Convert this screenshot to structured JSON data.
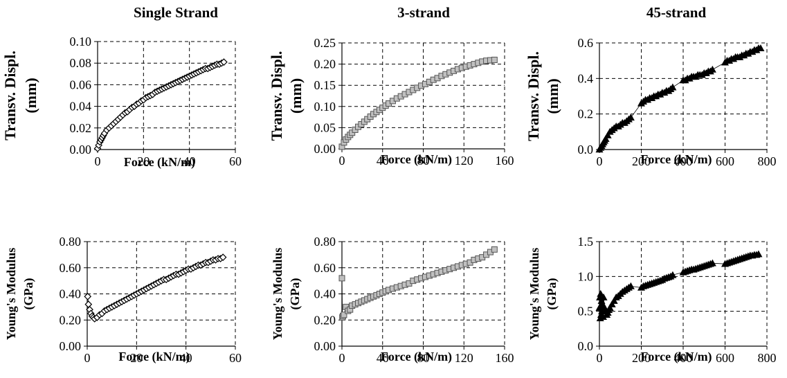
{
  "column_titles": [
    "Single Strand",
    "3-strand",
    "45-strand"
  ],
  "chart_data": [
    {
      "type": "scatter",
      "title": "Single Strand",
      "xlabel": "Force (kN/m)",
      "ylabel": [
        "Transv. Displ.",
        "(mm)"
      ],
      "xlim": [
        0,
        60
      ],
      "ylim": [
        0,
        0.1
      ],
      "xticks": [
        0,
        20,
        40,
        60
      ],
      "yticks": [
        0.0,
        0.02,
        0.04,
        0.06,
        0.08,
        0.1
      ],
      "ytick_labels": [
        "0.00",
        "0.02",
        "0.04",
        "0.06",
        "0.08",
        "0.10"
      ],
      "grid": true,
      "marker": "diamond-open",
      "color": "#000000",
      "fill": "#ffffff",
      "series": [
        {
          "x": [
            0,
            0.5,
            1,
            1.5,
            2,
            2.5,
            3,
            4,
            5,
            6,
            7,
            8,
            9,
            10,
            11,
            12,
            13,
            14,
            15,
            16,
            17,
            18,
            19,
            20,
            21,
            22,
            23,
            24,
            25,
            26,
            27,
            28,
            29,
            30,
            31,
            32,
            33,
            34,
            35,
            36,
            37,
            38,
            39,
            40,
            41,
            42,
            43,
            44,
            45,
            46,
            47,
            48,
            49,
            50,
            51,
            52,
            53,
            54,
            55
          ],
          "y": [
            0.001,
            0.004,
            0.007,
            0.009,
            0.011,
            0.013,
            0.015,
            0.018,
            0.02,
            0.022,
            0.024,
            0.026,
            0.028,
            0.03,
            0.032,
            0.034,
            0.035,
            0.037,
            0.039,
            0.04,
            0.042,
            0.043,
            0.045,
            0.046,
            0.048,
            0.049,
            0.05,
            0.051,
            0.053,
            0.054,
            0.055,
            0.056,
            0.057,
            0.058,
            0.059,
            0.06,
            0.061,
            0.062,
            0.063,
            0.064,
            0.065,
            0.066,
            0.067,
            0.068,
            0.069,
            0.07,
            0.071,
            0.072,
            0.073,
            0.074,
            0.075,
            0.075,
            0.076,
            0.077,
            0.078,
            0.079,
            0.079,
            0.08,
            0.081
          ]
        }
      ]
    },
    {
      "type": "scatter",
      "title": "3-strand",
      "xlabel": "Force (kN/m)",
      "ylabel": [
        "Transv. Displ.",
        "(mm)"
      ],
      "xlim": [
        0,
        160
      ],
      "ylim": [
        0,
        0.25
      ],
      "xticks": [
        0,
        40,
        80,
        120,
        160
      ],
      "yticks": [
        0.0,
        0.05,
        0.1,
        0.15,
        0.2,
        0.25
      ],
      "ytick_labels": [
        "0.00",
        "0.05",
        "0.10",
        "0.15",
        "0.20",
        "0.25"
      ],
      "grid": true,
      "marker": "square",
      "color": "#555555",
      "fill": "#c0c0c0",
      "series": [
        {
          "x": [
            0,
            2,
            4,
            6,
            8,
            10,
            13,
            16,
            19,
            22,
            25,
            28,
            31,
            34,
            37,
            40,
            43,
            46,
            50,
            54,
            58,
            62,
            66,
            70,
            74,
            78,
            82,
            86,
            90,
            94,
            98,
            102,
            106,
            110,
            114,
            118,
            122,
            126,
            130,
            134,
            138,
            142,
            146,
            150
          ],
          "y": [
            0.005,
            0.015,
            0.022,
            0.028,
            0.033,
            0.038,
            0.045,
            0.052,
            0.058,
            0.064,
            0.07,
            0.076,
            0.082,
            0.087,
            0.092,
            0.097,
            0.102,
            0.107,
            0.113,
            0.119,
            0.124,
            0.129,
            0.134,
            0.139,
            0.144,
            0.149,
            0.153,
            0.158,
            0.163,
            0.167,
            0.172,
            0.176,
            0.18,
            0.184,
            0.188,
            0.191,
            0.194,
            0.197,
            0.2,
            0.203,
            0.206,
            0.208,
            0.209,
            0.21
          ]
        }
      ]
    },
    {
      "type": "scatter",
      "title": "45-strand",
      "xlabel": "Force (kN/m)",
      "ylabel": [
        "Transv. Displ.",
        "(mm)"
      ],
      "xlim": [
        0,
        800
      ],
      "ylim": [
        0,
        0.6
      ],
      "xticks": [
        0,
        200,
        400,
        600,
        800
      ],
      "yticks": [
        0.0,
        0.2,
        0.4,
        0.6
      ],
      "ytick_labels": [
        "0.0",
        "0.2",
        "0.4",
        "0.6"
      ],
      "grid": true,
      "marker": "triangle",
      "color": "#000000",
      "fill": "#000000",
      "series": [
        {
          "x": [
            0,
            5,
            10,
            15,
            20,
            25,
            30,
            40,
            50,
            60,
            70,
            80,
            90,
            100,
            110,
            120,
            130,
            140,
            150,
            200,
            210,
            220,
            230,
            240,
            250,
            260,
            270,
            280,
            290,
            300,
            310,
            320,
            330,
            340,
            350,
            400,
            410,
            420,
            430,
            440,
            450,
            460,
            470,
            480,
            490,
            500,
            510,
            520,
            530,
            540,
            600,
            610,
            620,
            630,
            640,
            650,
            660,
            670,
            680,
            690,
            700,
            710,
            720,
            730,
            740,
            750,
            760,
            770
          ],
          "y": [
            0.0,
            0.01,
            0.02,
            0.03,
            0.04,
            0.05,
            0.06,
            0.08,
            0.1,
            0.11,
            0.12,
            0.13,
            0.13,
            0.14,
            0.15,
            0.15,
            0.16,
            0.17,
            0.18,
            0.26,
            0.27,
            0.28,
            0.28,
            0.29,
            0.29,
            0.3,
            0.3,
            0.31,
            0.31,
            0.32,
            0.32,
            0.33,
            0.33,
            0.34,
            0.35,
            0.39,
            0.39,
            0.4,
            0.4,
            0.41,
            0.41,
            0.41,
            0.42,
            0.42,
            0.42,
            0.43,
            0.43,
            0.44,
            0.44,
            0.45,
            0.49,
            0.5,
            0.5,
            0.51,
            0.51,
            0.52,
            0.52,
            0.52,
            0.53,
            0.53,
            0.54,
            0.54,
            0.55,
            0.55,
            0.56,
            0.56,
            0.57,
            0.57
          ]
        }
      ]
    },
    {
      "type": "scatter",
      "xlabel": "Force (kN/m)",
      "ylabel": [
        "Young's Modulus",
        "(GPa)"
      ],
      "xlim": [
        0,
        60
      ],
      "ylim": [
        0,
        0.8
      ],
      "xticks": [
        0,
        20,
        40,
        60
      ],
      "yticks": [
        0.0,
        0.2,
        0.4,
        0.6,
        0.8
      ],
      "ytick_labels": [
        "0.00",
        "0.20",
        "0.40",
        "0.60",
        "0.80"
      ],
      "grid": true,
      "marker": "diamond-open",
      "color": "#000000",
      "fill": "#ffffff",
      "series": [
        {
          "x": [
            0.2,
            0.5,
            1,
            1.5,
            2,
            2.5,
            3,
            4,
            5,
            6,
            7,
            8,
            9,
            10,
            11,
            12,
            13,
            14,
            15,
            16,
            17,
            18,
            19,
            20,
            21,
            22,
            23,
            24,
            25,
            26,
            27,
            28,
            29,
            30,
            31,
            32,
            33,
            34,
            35,
            36,
            37,
            38,
            39,
            40,
            41,
            42,
            43,
            44,
            45,
            46,
            47,
            48,
            49,
            50,
            51,
            52,
            53,
            54,
            55
          ],
          "y": [
            0.38,
            0.32,
            0.28,
            0.25,
            0.23,
            0.22,
            0.21,
            0.22,
            0.24,
            0.25,
            0.27,
            0.28,
            0.29,
            0.3,
            0.31,
            0.32,
            0.33,
            0.34,
            0.35,
            0.36,
            0.37,
            0.38,
            0.39,
            0.4,
            0.41,
            0.42,
            0.43,
            0.44,
            0.45,
            0.46,
            0.47,
            0.48,
            0.49,
            0.5,
            0.51,
            0.51,
            0.52,
            0.53,
            0.54,
            0.55,
            0.55,
            0.56,
            0.57,
            0.58,
            0.59,
            0.59,
            0.6,
            0.61,
            0.62,
            0.62,
            0.63,
            0.64,
            0.64,
            0.65,
            0.66,
            0.66,
            0.67,
            0.67,
            0.68
          ]
        }
      ]
    },
    {
      "type": "scatter",
      "xlabel": "Force (kN/m)",
      "ylabel": [
        "Young's Modulus",
        "(GPa)"
      ],
      "xlim": [
        0,
        160
      ],
      "ylim": [
        0,
        0.8
      ],
      "xticks": [
        0,
        40,
        80,
        120,
        160
      ],
      "yticks": [
        0.0,
        0.2,
        0.4,
        0.6,
        0.8
      ],
      "ytick_labels": [
        "0.00",
        "0.20",
        "0.40",
        "0.60",
        "0.80"
      ],
      "grid": true,
      "marker": "square",
      "color": "#555555",
      "fill": "#c0c0c0",
      "series": [
        {
          "x": [
            0,
            0.5,
            1,
            2,
            4,
            6,
            8,
            10,
            13,
            16,
            19,
            22,
            25,
            28,
            31,
            34,
            37,
            40,
            43,
            46,
            50,
            54,
            58,
            62,
            66,
            70,
            74,
            78,
            82,
            86,
            90,
            94,
            98,
            102,
            106,
            110,
            114,
            118,
            122,
            126,
            130,
            134,
            138,
            142,
            146,
            150
          ],
          "y": [
            0.52,
            0.22,
            0.23,
            0.24,
            0.3,
            0.27,
            0.28,
            0.31,
            0.32,
            0.33,
            0.34,
            0.35,
            0.36,
            0.37,
            0.38,
            0.39,
            0.4,
            0.41,
            0.42,
            0.43,
            0.44,
            0.45,
            0.46,
            0.47,
            0.48,
            0.5,
            0.51,
            0.52,
            0.53,
            0.54,
            0.55,
            0.56,
            0.57,
            0.58,
            0.59,
            0.6,
            0.61,
            0.62,
            0.63,
            0.64,
            0.66,
            0.67,
            0.68,
            0.7,
            0.72,
            0.74
          ]
        }
      ]
    },
    {
      "type": "scatter",
      "xlabel": "Force (kN/m)",
      "ylabel": [
        "Young's Modulus",
        "(GPa)"
      ],
      "xlim": [
        0,
        800
      ],
      "ylim": [
        0,
        1.5
      ],
      "xticks": [
        0,
        200,
        400,
        600,
        800
      ],
      "yticks": [
        0.0,
        0.5,
        1.0,
        1.5
      ],
      "ytick_labels": [
        "0.0",
        "0.5",
        "1.0",
        "1.5"
      ],
      "grid": true,
      "marker": "triangle",
      "color": "#000000",
      "fill": "#000000",
      "series": [
        {
          "x": [
            0,
            2,
            4,
            6,
            8,
            10,
            12,
            15,
            18,
            20,
            25,
            30,
            35,
            40,
            45,
            50,
            60,
            70,
            80,
            90,
            100,
            110,
            120,
            130,
            140,
            150,
            200,
            210,
            220,
            230,
            240,
            250,
            260,
            270,
            280,
            290,
            300,
            310,
            320,
            330,
            340,
            350,
            400,
            410,
            420,
            430,
            440,
            450,
            460,
            470,
            480,
            490,
            500,
            510,
            520,
            530,
            540,
            600,
            610,
            620,
            630,
            640,
            650,
            660,
            670,
            680,
            690,
            700,
            710,
            720,
            730,
            740,
            750,
            760
          ],
          "y": [
            0.55,
            0.7,
            0.4,
            0.75,
            0.45,
            0.65,
            0.5,
            0.6,
            0.42,
            0.7,
            0.55,
            0.5,
            0.45,
            0.48,
            0.52,
            0.55,
            0.6,
            0.65,
            0.7,
            0.72,
            0.75,
            0.78,
            0.8,
            0.82,
            0.84,
            0.86,
            0.84,
            0.86,
            0.87,
            0.88,
            0.89,
            0.9,
            0.91,
            0.92,
            0.93,
            0.94,
            0.95,
            0.97,
            0.98,
            0.99,
            1.0,
            1.02,
            1.06,
            1.07,
            1.08,
            1.09,
            1.1,
            1.1,
            1.11,
            1.12,
            1.13,
            1.14,
            1.15,
            1.16,
            1.17,
            1.18,
            1.19,
            1.18,
            1.19,
            1.2,
            1.21,
            1.22,
            1.23,
            1.24,
            1.25,
            1.26,
            1.27,
            1.28,
            1.29,
            1.3,
            1.3,
            1.31,
            1.31,
            1.32
          ]
        }
      ]
    }
  ]
}
